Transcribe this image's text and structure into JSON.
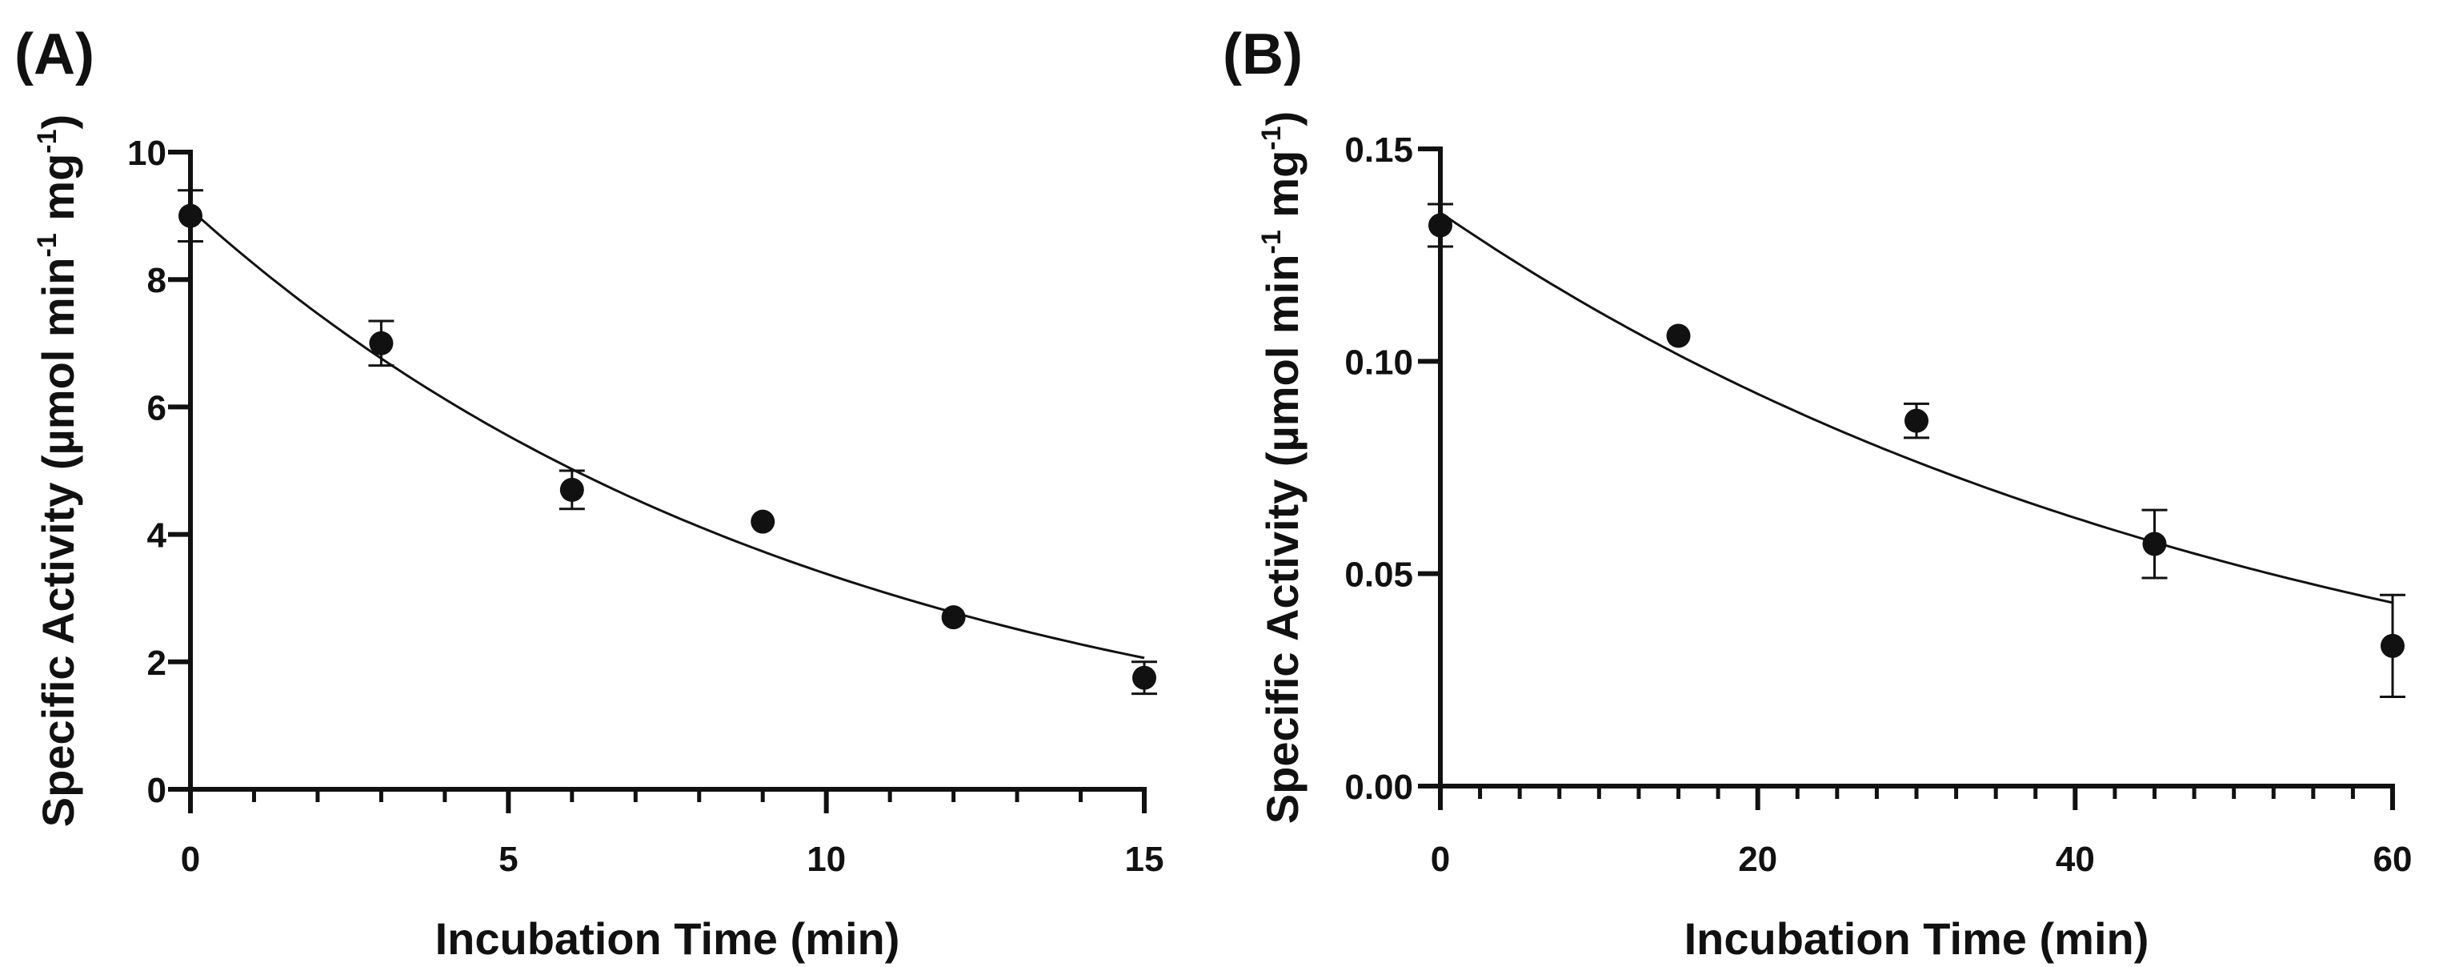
{
  "chart_data": [
    {
      "panel_label": "(A)",
      "type": "scatter",
      "xlabel": "Incubation Time (min)",
      "ylabel_main": "Specific Activity (µmol min",
      "ylabel_sup1": "-1",
      "ylabel_mid": " mg",
      "ylabel_sup2": "-1",
      "ylabel_end": ")",
      "xlim": [
        0,
        15
      ],
      "ylim": [
        0,
        10
      ],
      "x_ticks": [
        0,
        5,
        10,
        15
      ],
      "x_tick_labels": [
        "0",
        "5",
        "10",
        "15"
      ],
      "x_minor_ticks": [
        1,
        2,
        3,
        4,
        6,
        7,
        8,
        9,
        11,
        12,
        13,
        14
      ],
      "y_ticks": [
        0,
        2,
        4,
        6,
        8,
        10
      ],
      "y_tick_labels": [
        "0",
        "2",
        "4",
        "6",
        "8",
        "10"
      ],
      "points": [
        {
          "x": 0,
          "y": 9.0,
          "err": 0.4
        },
        {
          "x": 3,
          "y": 7.0,
          "err": 0.35
        },
        {
          "x": 6,
          "y": 4.7,
          "err": 0.3
        },
        {
          "x": 9,
          "y": 4.2,
          "err": 0.0
        },
        {
          "x": 12,
          "y": 2.7,
          "err": 0.0
        },
        {
          "x": 15,
          "y": 1.75,
          "err": 0.25
        }
      ],
      "fit": {
        "model": "exponential decay",
        "y0": 9.1,
        "k": 0.099
      }
    },
    {
      "panel_label": "(B)",
      "type": "scatter",
      "xlabel": "Incubation Time (min)",
      "ylabel_main": "Specific Activity (µmol min",
      "ylabel_sup1": "-1",
      "ylabel_mid": " mg",
      "ylabel_sup2": "-1",
      "ylabel_end": ")",
      "xlim": [
        0,
        60
      ],
      "ylim": [
        0,
        0.15
      ],
      "x_ticks": [
        0,
        20,
        40,
        60
      ],
      "x_tick_labels": [
        "0",
        "20",
        "40",
        "60"
      ],
      "x_minor_ticks": [
        2.5,
        5,
        7.5,
        10,
        12.5,
        15,
        17.5,
        22.5,
        25,
        27.5,
        30,
        32.5,
        35,
        37.5,
        42.5,
        45,
        47.5,
        50,
        52.5,
        55,
        57.5
      ],
      "y_ticks": [
        0,
        0.05,
        0.1,
        0.15
      ],
      "y_tick_labels": [
        "0.00",
        "0.05",
        "0.10",
        "0.15"
      ],
      "points": [
        {
          "x": 0,
          "y": 0.132,
          "err": 0.005
        },
        {
          "x": 15,
          "y": 0.106,
          "err": 0.0
        },
        {
          "x": 30,
          "y": 0.086,
          "err": 0.004
        },
        {
          "x": 45,
          "y": 0.057,
          "err": 0.008
        },
        {
          "x": 60,
          "y": 0.033,
          "err": 0.012
        }
      ],
      "fit": {
        "model": "exponential decay",
        "y0": 0.135,
        "k": 0.019
      }
    }
  ]
}
